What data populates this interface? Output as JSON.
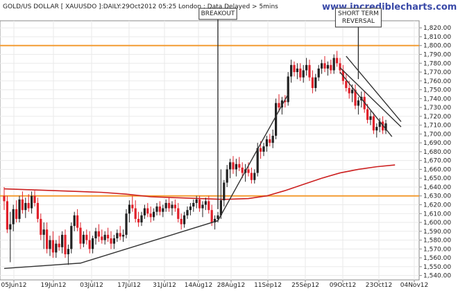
{
  "chart_data": {
    "type": "candlestick",
    "title": "GOLD/US DOLLAR [ XAUUSDO ]:DAILY:29Oct2012 05:25 London : Data Delayed > 5mins",
    "brand": "www.incrediblecharts.com",
    "xlabel": "",
    "ylabel": "",
    "x_ticks": [
      "05Jun12",
      "19Jun12",
      "03Jul12",
      "17Jul12",
      "31Jul12",
      "14Aug12",
      "28Aug12",
      "11Sep12",
      "25Sep12",
      "09Oct12",
      "23Oct12",
      "04Nov12"
    ],
    "y_ticks": [
      "1,540.00",
      "1,550.00",
      "1,560.00",
      "1,570.00",
      "1,580.00",
      "1,590.00",
      "1,600.00",
      "1,610.00",
      "1,620.00",
      "1,630.00",
      "1,640.00",
      "1,650.00",
      "1,660.00",
      "1,670.00",
      "1,680.00",
      "1,690.00",
      "1,700.00",
      "1,710.00",
      "1,720.00",
      "1,730.00",
      "1,740.00",
      "1,750.00",
      "1,760.00",
      "1,770.00",
      "1,780.00",
      "1,790.00",
      "1,800.00",
      "1,810.00",
      "1,820.00"
    ],
    "ylim": [
      1535,
      1828
    ],
    "horizontal_lines": [
      {
        "value": 1800,
        "color": "#f39c32"
      },
      {
        "value": 1630,
        "color": "#f39c32"
      }
    ],
    "annotations": [
      {
        "text": "BREAKOUT",
        "session": 70,
        "price": 1826
      },
      {
        "text": "SHORT TERM",
        "text2": "REVERSAL",
        "session": 116,
        "price": 1822
      }
    ],
    "trendlines": [
      {
        "points": [
          [
            0,
            1548
          ],
          [
            25,
            1554
          ],
          [
            70,
            1602
          ],
          [
            93,
            1745
          ]
        ]
      },
      {
        "points": [
          [
            110,
            1775
          ],
          [
            130,
            1708
          ]
        ]
      },
      {
        "points": [
          [
            112,
            1788
          ],
          [
            130,
            1714
          ]
        ]
      },
      {
        "points": [
          [
            110,
            1770
          ],
          [
            127,
            1697
          ]
        ]
      }
    ],
    "moving_average": {
      "name": "",
      "color": "#cc1f1f",
      "points": [
        [
          0,
          1638
        ],
        [
          8,
          1637
        ],
        [
          16,
          1636
        ],
        [
          24,
          1635
        ],
        [
          32,
          1634
        ],
        [
          40,
          1632
        ],
        [
          48,
          1629
        ],
        [
          56,
          1628
        ],
        [
          64,
          1627
        ],
        [
          72,
          1626
        ],
        [
          80,
          1627
        ],
        [
          86,
          1630
        ],
        [
          92,
          1636
        ],
        [
          98,
          1643
        ],
        [
          104,
          1650
        ],
        [
          110,
          1656
        ],
        [
          116,
          1660
        ],
        [
          122,
          1663
        ],
        [
          128,
          1665
        ]
      ]
    },
    "candles": [
      {
        "o": 1630,
        "h": 1640,
        "l": 1614,
        "c": 1624
      },
      {
        "o": 1624,
        "h": 1630,
        "l": 1588,
        "c": 1592
      },
      {
        "o": 1592,
        "h": 1612,
        "l": 1555,
        "c": 1598
      },
      {
        "o": 1598,
        "h": 1620,
        "l": 1590,
        "c": 1615
      },
      {
        "o": 1615,
        "h": 1625,
        "l": 1600,
        "c": 1604
      },
      {
        "o": 1604,
        "h": 1630,
        "l": 1600,
        "c": 1626
      },
      {
        "o": 1626,
        "h": 1635,
        "l": 1610,
        "c": 1614
      },
      {
        "o": 1614,
        "h": 1628,
        "l": 1605,
        "c": 1622
      },
      {
        "o": 1622,
        "h": 1632,
        "l": 1612,
        "c": 1616
      },
      {
        "o": 1616,
        "h": 1635,
        "l": 1610,
        "c": 1630
      },
      {
        "o": 1630,
        "h": 1636,
        "l": 1618,
        "c": 1622
      },
      {
        "o": 1622,
        "h": 1628,
        "l": 1600,
        "c": 1604
      },
      {
        "o": 1604,
        "h": 1610,
        "l": 1580,
        "c": 1586
      },
      {
        "o": 1586,
        "h": 1600,
        "l": 1570,
        "c": 1592
      },
      {
        "o": 1592,
        "h": 1600,
        "l": 1565,
        "c": 1570
      },
      {
        "o": 1570,
        "h": 1585,
        "l": 1562,
        "c": 1580
      },
      {
        "o": 1580,
        "h": 1590,
        "l": 1560,
        "c": 1566
      },
      {
        "o": 1566,
        "h": 1580,
        "l": 1560,
        "c": 1576
      },
      {
        "o": 1576,
        "h": 1585,
        "l": 1568,
        "c": 1572
      },
      {
        "o": 1572,
        "h": 1590,
        "l": 1565,
        "c": 1586
      },
      {
        "o": 1586,
        "h": 1592,
        "l": 1560,
        "c": 1564
      },
      {
        "o": 1564,
        "h": 1575,
        "l": 1552,
        "c": 1570
      },
      {
        "o": 1570,
        "h": 1600,
        "l": 1565,
        "c": 1596
      },
      {
        "o": 1596,
        "h": 1612,
        "l": 1590,
        "c": 1608
      },
      {
        "o": 1608,
        "h": 1615,
        "l": 1590,
        "c": 1594
      },
      {
        "o": 1594,
        "h": 1600,
        "l": 1570,
        "c": 1576
      },
      {
        "o": 1576,
        "h": 1590,
        "l": 1572,
        "c": 1586
      },
      {
        "o": 1586,
        "h": 1592,
        "l": 1575,
        "c": 1580
      },
      {
        "o": 1580,
        "h": 1590,
        "l": 1565,
        "c": 1570
      },
      {
        "o": 1570,
        "h": 1585,
        "l": 1565,
        "c": 1582
      },
      {
        "o": 1582,
        "h": 1594,
        "l": 1575,
        "c": 1590
      },
      {
        "o": 1590,
        "h": 1598,
        "l": 1578,
        "c": 1584
      },
      {
        "o": 1584,
        "h": 1592,
        "l": 1576,
        "c": 1580
      },
      {
        "o": 1580,
        "h": 1590,
        "l": 1575,
        "c": 1586
      },
      {
        "o": 1586,
        "h": 1594,
        "l": 1578,
        "c": 1582
      },
      {
        "o": 1582,
        "h": 1590,
        "l": 1570,
        "c": 1576
      },
      {
        "o": 1576,
        "h": 1586,
        "l": 1570,
        "c": 1582
      },
      {
        "o": 1582,
        "h": 1592,
        "l": 1578,
        "c": 1588
      },
      {
        "o": 1588,
        "h": 1596,
        "l": 1580,
        "c": 1584
      },
      {
        "o": 1584,
        "h": 1592,
        "l": 1578,
        "c": 1586
      },
      {
        "o": 1586,
        "h": 1615,
        "l": 1582,
        "c": 1610
      },
      {
        "o": 1610,
        "h": 1625,
        "l": 1600,
        "c": 1620
      },
      {
        "o": 1620,
        "h": 1630,
        "l": 1612,
        "c": 1616
      },
      {
        "o": 1616,
        "h": 1625,
        "l": 1600,
        "c": 1604
      },
      {
        "o": 1604,
        "h": 1612,
        "l": 1595,
        "c": 1600
      },
      {
        "o": 1600,
        "h": 1612,
        "l": 1596,
        "c": 1608
      },
      {
        "o": 1608,
        "h": 1620,
        "l": 1604,
        "c": 1616
      },
      {
        "o": 1616,
        "h": 1622,
        "l": 1606,
        "c": 1610
      },
      {
        "o": 1610,
        "h": 1618,
        "l": 1600,
        "c": 1606
      },
      {
        "o": 1606,
        "h": 1616,
        "l": 1602,
        "c": 1612
      },
      {
        "o": 1612,
        "h": 1622,
        "l": 1608,
        "c": 1618
      },
      {
        "o": 1618,
        "h": 1624,
        "l": 1608,
        "c": 1612
      },
      {
        "o": 1612,
        "h": 1620,
        "l": 1606,
        "c": 1616
      },
      {
        "o": 1616,
        "h": 1626,
        "l": 1612,
        "c": 1622
      },
      {
        "o": 1622,
        "h": 1628,
        "l": 1612,
        "c": 1616
      },
      {
        "o": 1616,
        "h": 1624,
        "l": 1608,
        "c": 1620
      },
      {
        "o": 1620,
        "h": 1626,
        "l": 1612,
        "c": 1616
      },
      {
        "o": 1616,
        "h": 1622,
        "l": 1600,
        "c": 1604
      },
      {
        "o": 1604,
        "h": 1610,
        "l": 1592,
        "c": 1598
      },
      {
        "o": 1598,
        "h": 1612,
        "l": 1594,
        "c": 1608
      },
      {
        "o": 1608,
        "h": 1618,
        "l": 1604,
        "c": 1614
      },
      {
        "o": 1614,
        "h": 1622,
        "l": 1608,
        "c": 1618
      },
      {
        "o": 1618,
        "h": 1626,
        "l": 1612,
        "c": 1622
      },
      {
        "o": 1622,
        "h": 1630,
        "l": 1616,
        "c": 1626
      },
      {
        "o": 1626,
        "h": 1630,
        "l": 1612,
        "c": 1616
      },
      {
        "o": 1616,
        "h": 1624,
        "l": 1606,
        "c": 1620
      },
      {
        "o": 1620,
        "h": 1628,
        "l": 1614,
        "c": 1624
      },
      {
        "o": 1624,
        "h": 1630,
        "l": 1610,
        "c": 1614
      },
      {
        "o": 1614,
        "h": 1620,
        "l": 1596,
        "c": 1600
      },
      {
        "o": 1600,
        "h": 1608,
        "l": 1592,
        "c": 1604
      },
      {
        "o": 1604,
        "h": 1612,
        "l": 1600,
        "c": 1608
      },
      {
        "o": 1608,
        "h": 1660,
        "l": 1604,
        "c": 1625
      },
      {
        "o": 1625,
        "h": 1648,
        "l": 1618,
        "c": 1645
      },
      {
        "o": 1645,
        "h": 1665,
        "l": 1640,
        "c": 1660
      },
      {
        "o": 1660,
        "h": 1672,
        "l": 1650,
        "c": 1668
      },
      {
        "o": 1668,
        "h": 1675,
        "l": 1655,
        "c": 1660
      },
      {
        "o": 1660,
        "h": 1672,
        "l": 1652,
        "c": 1666
      },
      {
        "o": 1666,
        "h": 1674,
        "l": 1658,
        "c": 1662
      },
      {
        "o": 1662,
        "h": 1668,
        "l": 1650,
        "c": 1656
      },
      {
        "o": 1656,
        "h": 1666,
        "l": 1646,
        "c": 1660
      },
      {
        "o": 1660,
        "h": 1668,
        "l": 1652,
        "c": 1656
      },
      {
        "o": 1656,
        "h": 1662,
        "l": 1644,
        "c": 1648
      },
      {
        "o": 1648,
        "h": 1660,
        "l": 1644,
        "c": 1656
      },
      {
        "o": 1656,
        "h": 1690,
        "l": 1652,
        "c": 1684
      },
      {
        "o": 1684,
        "h": 1692,
        "l": 1672,
        "c": 1680
      },
      {
        "o": 1680,
        "h": 1690,
        "l": 1675,
        "c": 1686
      },
      {
        "o": 1686,
        "h": 1698,
        "l": 1680,
        "c": 1694
      },
      {
        "o": 1694,
        "h": 1700,
        "l": 1686,
        "c": 1690
      },
      {
        "o": 1690,
        "h": 1705,
        "l": 1684,
        "c": 1698
      },
      {
        "o": 1698,
        "h": 1740,
        "l": 1694,
        "c": 1735
      },
      {
        "o": 1735,
        "h": 1745,
        "l": 1725,
        "c": 1730
      },
      {
        "o": 1730,
        "h": 1742,
        "l": 1722,
        "c": 1738
      },
      {
        "o": 1738,
        "h": 1744,
        "l": 1730,
        "c": 1736
      },
      {
        "o": 1736,
        "h": 1770,
        "l": 1732,
        "c": 1765
      },
      {
        "o": 1765,
        "h": 1784,
        "l": 1758,
        "c": 1778
      },
      {
        "o": 1778,
        "h": 1782,
        "l": 1765,
        "c": 1770
      },
      {
        "o": 1770,
        "h": 1780,
        "l": 1762,
        "c": 1774
      },
      {
        "o": 1774,
        "h": 1780,
        "l": 1760,
        "c": 1764
      },
      {
        "o": 1764,
        "h": 1778,
        "l": 1758,
        "c": 1772
      },
      {
        "o": 1772,
        "h": 1786,
        "l": 1766,
        "c": 1778
      },
      {
        "o": 1778,
        "h": 1784,
        "l": 1760,
        "c": 1764
      },
      {
        "o": 1764,
        "h": 1772,
        "l": 1746,
        "c": 1752
      },
      {
        "o": 1752,
        "h": 1768,
        "l": 1748,
        "c": 1764
      },
      {
        "o": 1764,
        "h": 1778,
        "l": 1760,
        "c": 1774
      },
      {
        "o": 1774,
        "h": 1784,
        "l": 1768,
        "c": 1780
      },
      {
        "o": 1780,
        "h": 1788,
        "l": 1770,
        "c": 1774
      },
      {
        "o": 1774,
        "h": 1782,
        "l": 1766,
        "c": 1778
      },
      {
        "o": 1778,
        "h": 1784,
        "l": 1768,
        "c": 1772
      },
      {
        "o": 1772,
        "h": 1790,
        "l": 1768,
        "c": 1786
      },
      {
        "o": 1786,
        "h": 1794,
        "l": 1776,
        "c": 1780
      },
      {
        "o": 1780,
        "h": 1786,
        "l": 1768,
        "c": 1772
      },
      {
        "o": 1772,
        "h": 1778,
        "l": 1756,
        "c": 1760
      },
      {
        "o": 1760,
        "h": 1768,
        "l": 1748,
        "c": 1752
      },
      {
        "o": 1752,
        "h": 1760,
        "l": 1740,
        "c": 1746
      },
      {
        "o": 1746,
        "h": 1756,
        "l": 1736,
        "c": 1750
      },
      {
        "o": 1750,
        "h": 1756,
        "l": 1728,
        "c": 1732
      },
      {
        "o": 1732,
        "h": 1742,
        "l": 1722,
        "c": 1738
      },
      {
        "o": 1738,
        "h": 1748,
        "l": 1730,
        "c": 1742
      },
      {
        "o": 1742,
        "h": 1748,
        "l": 1724,
        "c": 1728
      },
      {
        "o": 1728,
        "h": 1734,
        "l": 1712,
        "c": 1716
      },
      {
        "o": 1716,
        "h": 1726,
        "l": 1710,
        "c": 1720
      },
      {
        "o": 1720,
        "h": 1724,
        "l": 1700,
        "c": 1704
      },
      {
        "o": 1704,
        "h": 1712,
        "l": 1696,
        "c": 1708
      },
      {
        "o": 1708,
        "h": 1718,
        "l": 1702,
        "c": 1714
      },
      {
        "o": 1714,
        "h": 1720,
        "l": 1700,
        "c": 1704
      },
      {
        "o": 1704,
        "h": 1716,
        "l": 1700,
        "c": 1712
      }
    ]
  }
}
